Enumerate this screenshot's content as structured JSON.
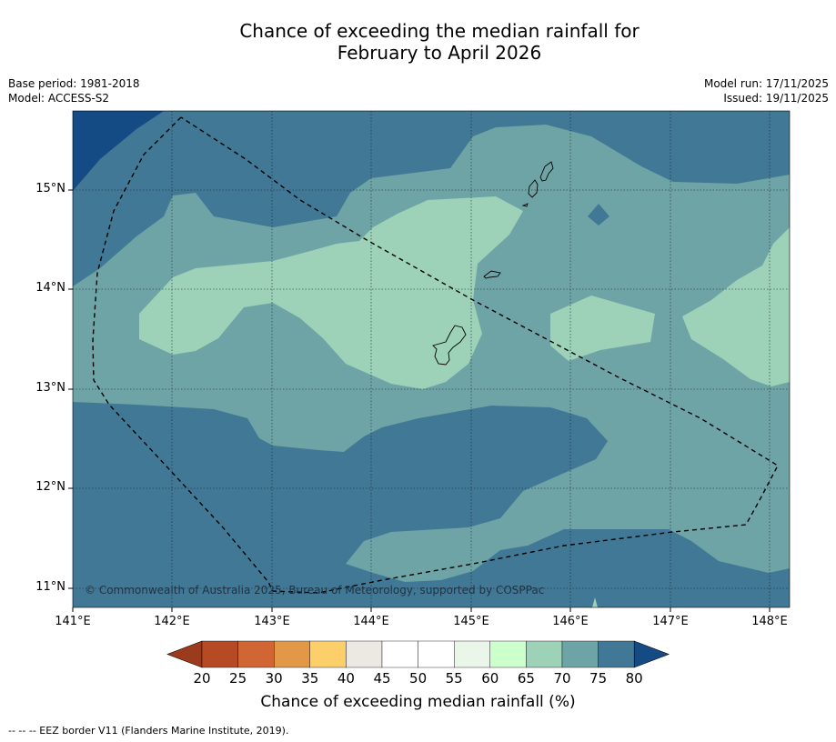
{
  "title_line1": "Chance of exceeding the median rainfall for",
  "title_line2": "February to April 2026",
  "meta_left": [
    "Base period: 1981-2018",
    "Model: ACCESS-S2"
  ],
  "meta_right": [
    "Model run: 17/11/2025",
    "Issued: 19/11/2025"
  ],
  "lat_ticks": [
    "15°N",
    "14°N",
    "13°N",
    "12°N",
    "11°N"
  ],
  "lon_ticks": [
    "141°E",
    "142°E",
    "143°E",
    "144°E",
    "145°E",
    "146°E",
    "147°E",
    "148°E"
  ],
  "copyright": "© Commonwealth of Australia 2025, Bureau of Meteorology, supported by COSPPac",
  "colorbar": {
    "label": "Chance of exceeding median rainfall (%)",
    "ticks": [
      "20",
      "25",
      "30",
      "35",
      "40",
      "45",
      "50",
      "55",
      "60",
      "65",
      "70",
      "75",
      "80"
    ],
    "colors": [
      "#9c3a1e",
      "#b64a24",
      "#d06633",
      "#e39848",
      "#fccf6a",
      "#ece8e4",
      "#ffffff",
      "#ffffff",
      "#e9f6e9",
      "#ccffcc",
      "#9dd1b8",
      "#6fa4a6",
      "#417896",
      "#154b85"
    ]
  },
  "footnote": "--  --  -- EEZ border V11 (Flanders Marine Institute, 2019).",
  "colors": {
    "c75": "#417896",
    "c70": "#6fa4a6",
    "c65": "#9dd1b8",
    "c80": "#154b85"
  }
}
